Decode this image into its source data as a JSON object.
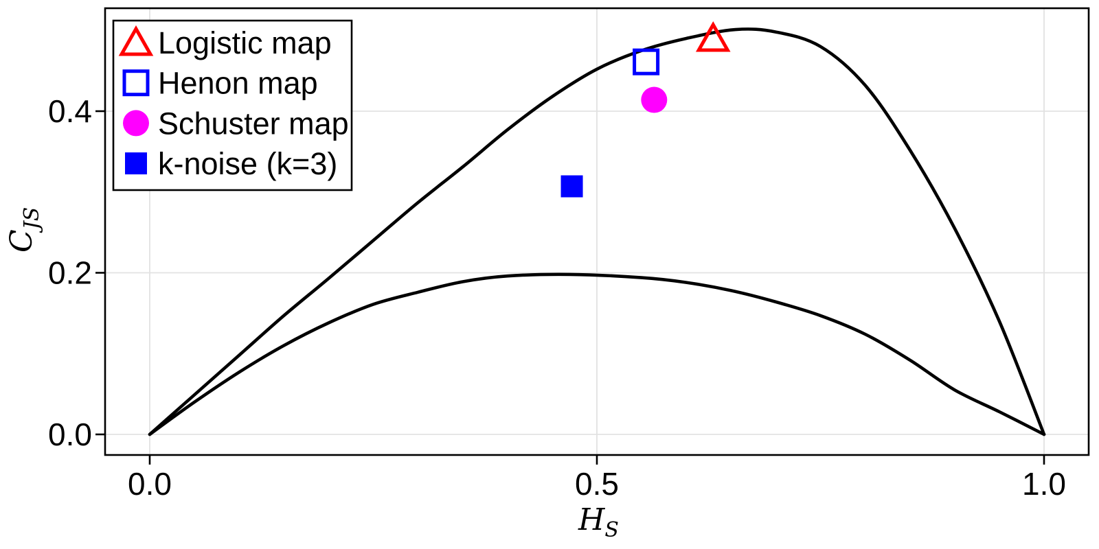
{
  "page": {
    "background": "#ffffff"
  },
  "chart_data": {
    "type": "scatter",
    "title": "",
    "xlabel": "H_S",
    "xlabel_main": "H",
    "xlabel_sub": "S",
    "ylabel": "C_JS",
    "ylabel_main": "C",
    "ylabel_sub": "JS",
    "xlim": [
      -0.05,
      1.05
    ],
    "ylim": [
      -0.026,
      0.527
    ],
    "xticks": [
      0.0,
      0.5,
      1.0
    ],
    "xtick_labels": [
      "0.0",
      "0.5",
      "1.0"
    ],
    "yticks": [
      0.0,
      0.2,
      0.4
    ],
    "ytick_labels": [
      "0.0",
      "0.2",
      "0.4"
    ],
    "grid": true,
    "grid_color": "#e2e2e2",
    "axis_color": "#000000",
    "curve_color": "#000000",
    "legend_position": "upper-left",
    "series": [
      {
        "name": "Logistic map",
        "marker": "triangle-open",
        "color": "#ff0000",
        "points": [
          {
            "h": 0.63,
            "c": 0.49
          }
        ]
      },
      {
        "name": "Henon map",
        "marker": "square-open",
        "color": "#0000ff",
        "points": [
          {
            "h": 0.555,
            "c": 0.461
          }
        ]
      },
      {
        "name": "Schuster map",
        "marker": "circle-filled",
        "color": "#ff00ff",
        "points": [
          {
            "h": 0.564,
            "c": 0.414
          }
        ]
      },
      {
        "name": "k-noise (k=3)",
        "marker": "square-filled",
        "color": "#0000ff",
        "points": [
          {
            "h": 0.472,
            "c": 0.307
          }
        ]
      }
    ],
    "boundary_curves": [
      {
        "name": "maximum-complexity-curve",
        "points": [
          [
            0.0,
            0.0
          ],
          [
            0.05,
            0.049
          ],
          [
            0.1,
            0.098
          ],
          [
            0.15,
            0.147
          ],
          [
            0.2,
            0.193
          ],
          [
            0.25,
            0.24
          ],
          [
            0.3,
            0.287
          ],
          [
            0.35,
            0.331
          ],
          [
            0.4,
            0.377
          ],
          [
            0.45,
            0.418
          ],
          [
            0.5,
            0.452
          ],
          [
            0.55,
            0.475
          ],
          [
            0.6,
            0.49
          ],
          [
            0.655,
            0.501
          ],
          [
            0.7,
            0.498
          ],
          [
            0.75,
            0.48
          ],
          [
            0.8,
            0.432
          ],
          [
            0.85,
            0.352
          ],
          [
            0.9,
            0.255
          ],
          [
            0.95,
            0.14
          ],
          [
            1.0,
            0.0
          ]
        ]
      },
      {
        "name": "minimum-complexity-curve",
        "points": [
          [
            0.0,
            0.0
          ],
          [
            0.05,
            0.04
          ],
          [
            0.1,
            0.077
          ],
          [
            0.15,
            0.11
          ],
          [
            0.2,
            0.138
          ],
          [
            0.25,
            0.161
          ],
          [
            0.3,
            0.176
          ],
          [
            0.35,
            0.189
          ],
          [
            0.4,
            0.196
          ],
          [
            0.47,
            0.198
          ],
          [
            0.55,
            0.194
          ],
          [
            0.6,
            0.188
          ],
          [
            0.65,
            0.178
          ],
          [
            0.7,
            0.164
          ],
          [
            0.75,
            0.147
          ],
          [
            0.8,
            0.124
          ],
          [
            0.85,
            0.092
          ],
          [
            0.9,
            0.055
          ],
          [
            0.95,
            0.028
          ],
          [
            1.0,
            0.0
          ]
        ]
      }
    ]
  }
}
